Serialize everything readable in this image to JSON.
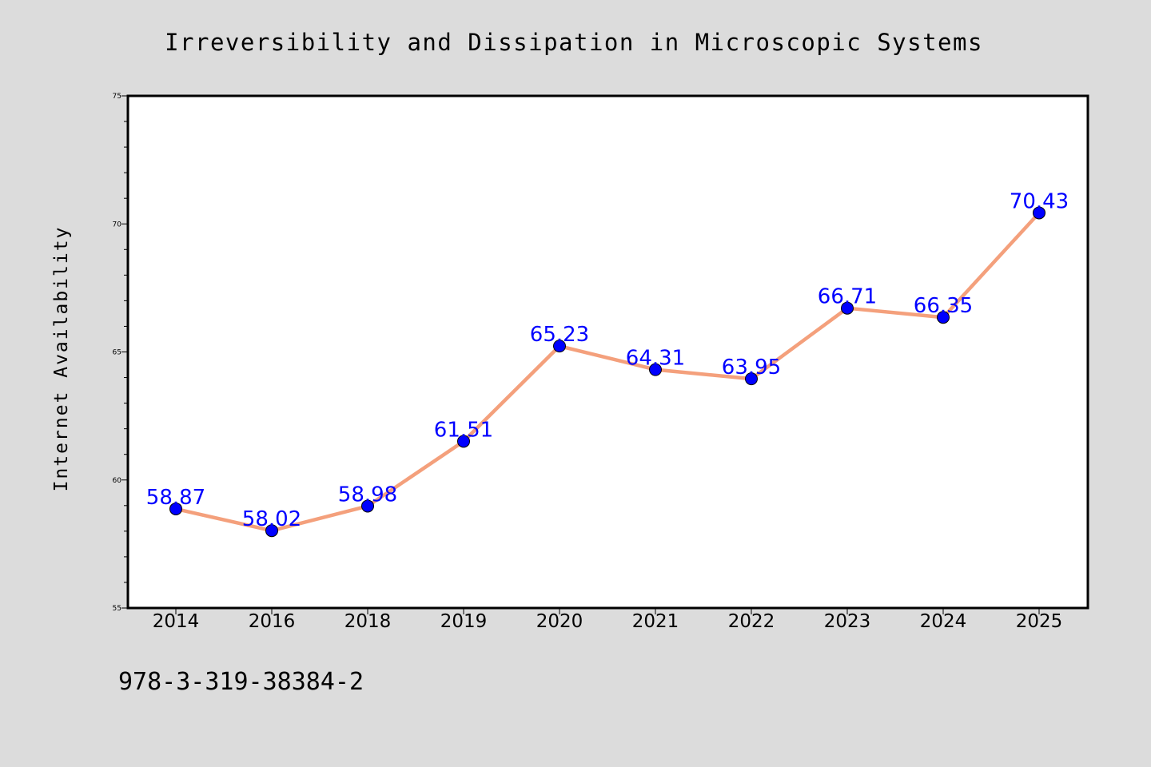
{
  "chart_data": {
    "type": "line",
    "title": "Irreversibility and Dissipation in Microscopic Systems",
    "xlabel": "",
    "ylabel": "Internet Availability",
    "categories": [
      "2014",
      "2016",
      "2018",
      "2019",
      "2020",
      "2021",
      "2022",
      "2023",
      "2024",
      "2025"
    ],
    "series": [
      {
        "values": [
          58.87,
          58.02,
          58.98,
          61.51,
          65.23,
          64.31,
          63.95,
          66.71,
          66.35,
          70.43
        ],
        "data_labels": [
          "58.87",
          "58.02",
          "58.98",
          "61.51",
          "65.23",
          "64.31",
          "63.95",
          "66.71",
          "66.35",
          "70.43"
        ],
        "line_color": "#f4a07c",
        "marker_color": "#0000ff"
      }
    ],
    "ylim": [
      55,
      75
    ],
    "yticks": [
      "55",
      "60",
      "65",
      "70",
      "75"
    ],
    "grid": false,
    "legend": "none"
  },
  "footnote": "978-3-319-38384-2",
  "colors": {
    "figure_background": "#dcdcdc",
    "plot_background": "#ffffff",
    "line": "#f4a07c",
    "markers": "#0000ff",
    "data_labels": "#0000ff"
  }
}
